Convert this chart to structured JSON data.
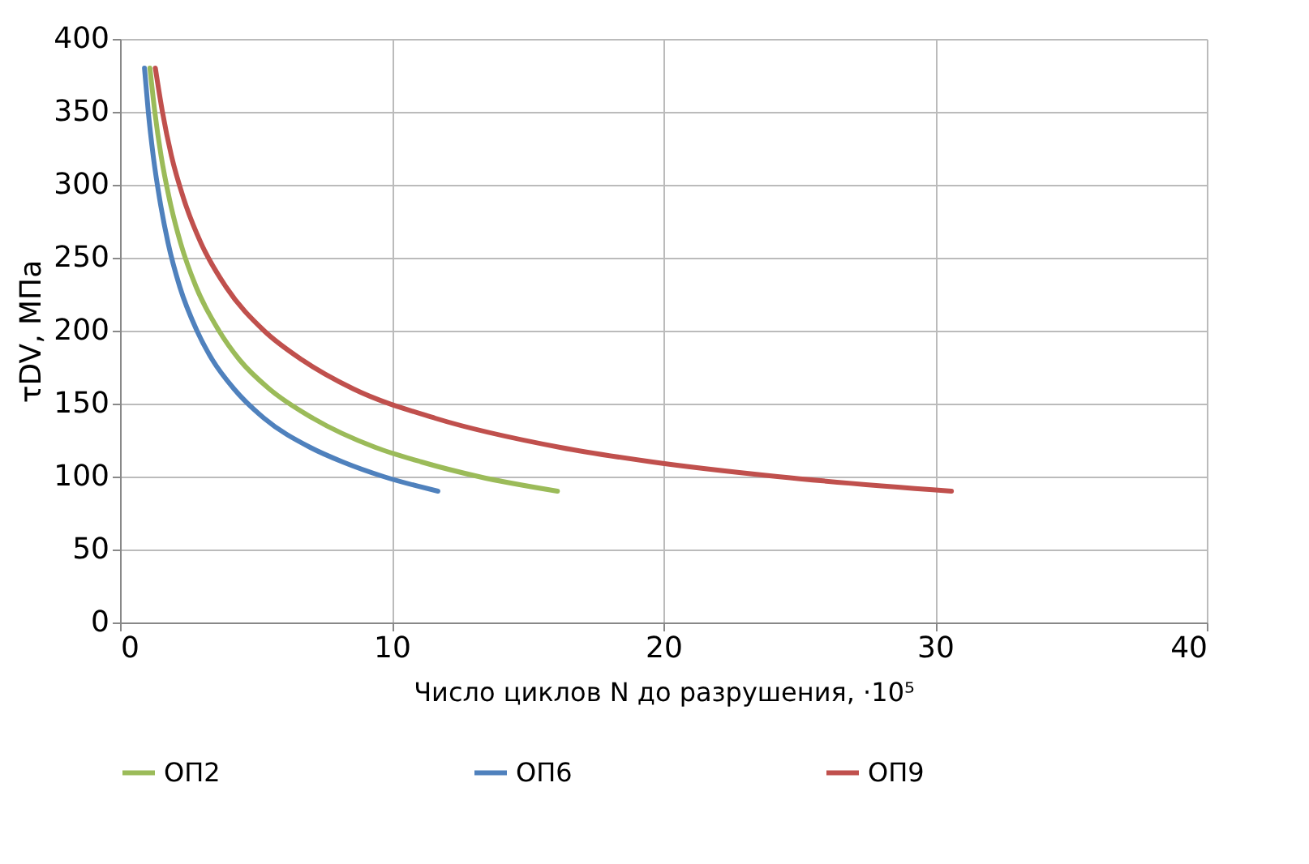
{
  "chart_data": {
    "type": "line",
    "xlabel": "Число циклов N до разрушения, ·10⁵",
    "ylabel": "τDV, МПа",
    "xlim": [
      0,
      40
    ],
    "xticks": [
      0,
      10,
      20,
      30,
      40
    ],
    "ylim": [
      0,
      400
    ],
    "yticks": [
      0,
      50,
      100,
      150,
      200,
      250,
      300,
      350,
      400
    ],
    "grid": true,
    "legend": "bottom",
    "marker": "none",
    "line_style": "solid",
    "series": [
      {
        "name": "ОП2",
        "color": "#9bbb59",
        "x": [
          1.1,
          1.28,
          1.51,
          1.82,
          2.23,
          2.8,
          3.64,
          4.4,
          5.5,
          7.1,
          9.4,
          11.1,
          13.2,
          16.1
        ],
        "values": [
          380,
          350,
          320,
          290,
          260,
          230,
          200,
          180,
          160,
          140,
          120,
          110,
          100,
          90
        ]
      },
      {
        "name": "ОП6",
        "color": "#4f81bd",
        "x": [
          0.9,
          1.04,
          1.22,
          1.46,
          1.77,
          2.2,
          2.83,
          3.4,
          4.2,
          5.3,
          7.0,
          8.2,
          9.7,
          11.7
        ],
        "values": [
          380,
          350,
          320,
          290,
          260,
          230,
          200,
          180,
          160,
          140,
          120,
          110,
          100,
          90
        ]
      },
      {
        "name": "ОП9",
        "color": "#c0504d",
        "x": [
          1.3,
          1.56,
          1.89,
          2.35,
          2.98,
          3.9,
          5.3,
          6.7,
          8.6,
          11.6,
          16.2,
          19.6,
          24.2,
          30.6
        ],
        "values": [
          380,
          350,
          320,
          290,
          260,
          230,
          200,
          180,
          160,
          140,
          120,
          110,
          100,
          90
        ]
      }
    ]
  }
}
